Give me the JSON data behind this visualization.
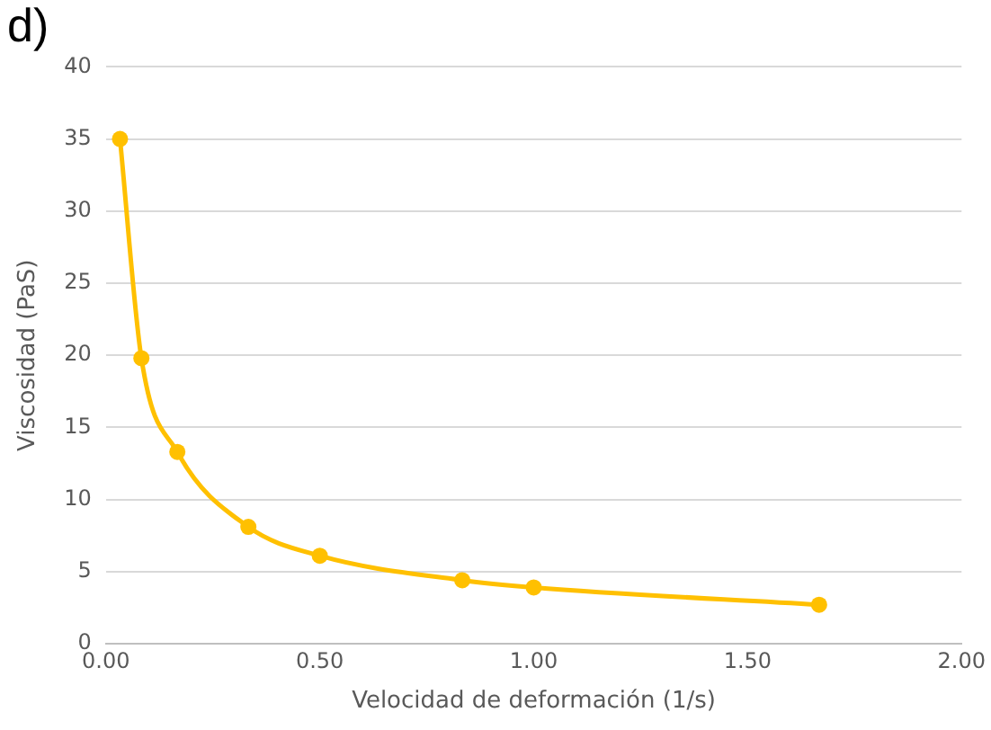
{
  "chart_data": {
    "type": "line",
    "title": "d)",
    "xlabel": "Velocidad de deformación (1/s)",
    "ylabel": "Viscosidad (PaS)",
    "x": [
      0.033,
      0.083,
      0.167,
      0.333,
      0.5,
      0.833,
      1.0,
      1.667
    ],
    "series": [
      {
        "color": "#ffc000",
        "values": [
          35,
          19.8,
          13.3,
          8.1,
          6.1,
          4.4,
          3.9,
          2.7
        ]
      }
    ],
    "xlim": [
      0,
      2
    ],
    "xticks": [
      {
        "value": 0,
        "label": "0.00"
      },
      {
        "value": 0.5,
        "label": "0.50"
      },
      {
        "value": 1,
        "label": "1.00"
      },
      {
        "value": 1.5,
        "label": "1.50"
      },
      {
        "value": 2,
        "label": "2.00"
      }
    ],
    "ylim": [
      0,
      40
    ],
    "yticks": [
      0,
      5,
      10,
      15,
      20,
      25,
      30,
      35,
      40
    ],
    "grid": "y",
    "legend": false,
    "marker": "circle",
    "line_style": "solid"
  }
}
